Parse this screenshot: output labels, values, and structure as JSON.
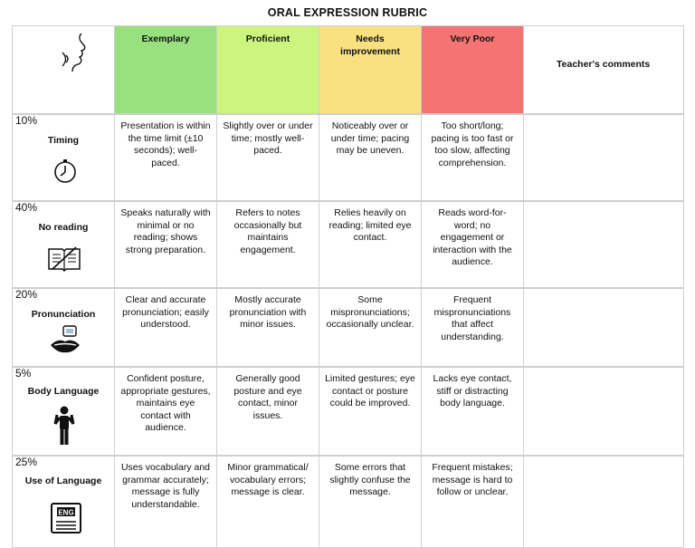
{
  "title": "ORAL EXPRESSION RUBRIC",
  "header": {
    "corner_icon": "speaking-head-icon",
    "levels": [
      "Exemplary",
      "Proficient",
      "Needs improvement",
      "Very Poor"
    ],
    "comments_label": "Teacher's comments",
    "colors": {
      "exemplary": "#99e07f",
      "proficient": "#ccf57e",
      "needs_improvement": "#f9e17f",
      "very_poor": "#f57373"
    }
  },
  "rows": [
    {
      "percent": "10%",
      "name": "Timing",
      "icon": "stopwatch-icon",
      "exemplary": "Presentation is within the time limit (±10 seconds); well-paced.",
      "proficient": "Slightly over or under time; mostly well-paced.",
      "needs_improvement": "Noticeably over or under time; pacing may be uneven.",
      "very_poor": "Too short/long; pacing is too fast or too slow, affecting comprehension.",
      "comment": ""
    },
    {
      "percent": "40%",
      "name": "No reading",
      "icon": "crossed-book-icon",
      "exemplary": "Speaks naturally with minimal or no reading; shows strong preparation.",
      "proficient": "Refers to notes occasionally but maintains engagement.",
      "needs_improvement": "Relies heavily on reading; limited eye contact.",
      "very_poor": "Reads word-for-word; no engagement or interaction with the audience.",
      "comment": ""
    },
    {
      "percent": "20%",
      "name": "Pronunciation",
      "icon": "mouth-speech-icon",
      "exemplary": "Clear and accurate pronunciation; easily understood.",
      "proficient": "Mostly accurate pronunciation with minor issues.",
      "needs_improvement": "Some mispronunciations; occasionally unclear.",
      "very_poor": "Frequent mispronunciations that affect understanding.",
      "comment": ""
    },
    {
      "percent": "5%",
      "name": "Body Language",
      "icon": "person-gesturing-icon",
      "exemplary": "Confident posture, appropriate gestures, maintains eye contact with audience.",
      "proficient": "Generally good posture and eye contact, minor issues.",
      "needs_improvement": "Limited gestures; eye contact or posture could be improved.",
      "very_poor": "Lacks eye contact, stiff or distracting body language.",
      "comment": ""
    },
    {
      "percent": "25%",
      "name": "Use of Language",
      "icon": "eng-book-icon",
      "icon_text": "ENG",
      "exemplary": "Uses vocabulary and grammar accurately; message is fully understandable.",
      "proficient": "Minor grammatical/ vocabulary errors; message is clear.",
      "needs_improvement": "Some errors that slightly confuse the message.",
      "very_poor": "Frequent mistakes; message is hard to follow or unclear.",
      "comment": ""
    }
  ]
}
